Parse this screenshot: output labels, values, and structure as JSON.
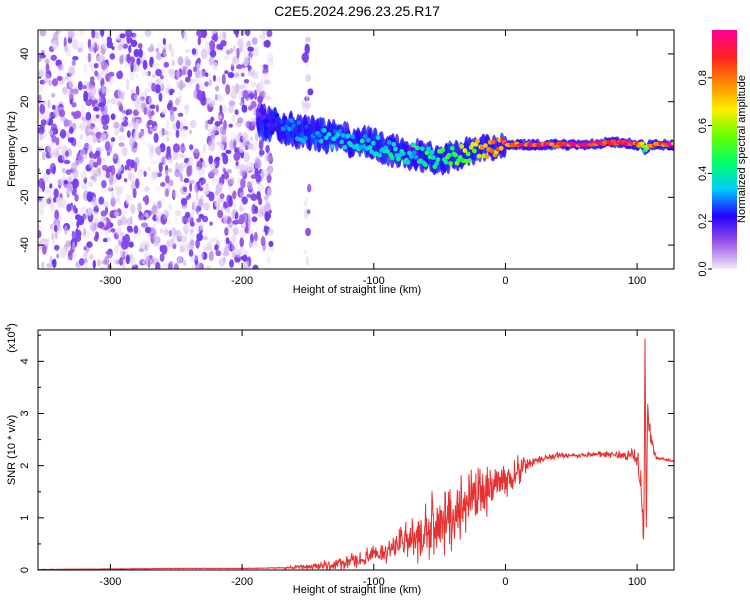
{
  "title": "C2E5.2024.296.23.25.R17",
  "chart_data": [
    {
      "type": "heatmap",
      "name": "spectrogram",
      "xlabel": "Height of straight line (km)",
      "ylabel": "Frequency (Hz)",
      "xlim": [
        -355,
        128
      ],
      "ylim": [
        -50,
        50
      ],
      "xticks": [
        -300,
        -200,
        -100,
        0,
        100
      ],
      "yticks": [
        -40,
        -20,
        0,
        20,
        40
      ],
      "colorbar": {
        "label": "Normalized spectral amplitude",
        "range": [
          0,
          1
        ],
        "ticks": [
          0.0,
          0.2,
          0.4,
          0.6,
          0.8
        ],
        "tick_labels": [
          "0.0",
          "0.2",
          "0.4",
          "0.6",
          "0.8"
        ],
        "colors": [
          "#f0eaf6",
          "#9a55e8",
          "#2200ff",
          "#00ccff",
          "#00ff66",
          "#66ff00",
          "#ffee00",
          "#ff8800",
          "#ff2020",
          "#ff0099"
        ]
      },
      "regions": [
        {
          "description": "broadband noise",
          "x_range": [
            -355,
            -178
          ],
          "y_range": [
            -50,
            50
          ],
          "amplitude_range": [
            0.0,
            0.15
          ]
        },
        {
          "description": "faint vertical streak",
          "x_range": [
            -153,
            -148
          ],
          "y_range": [
            -50,
            50
          ],
          "amplitude_range": [
            0.0,
            0.1
          ]
        }
      ],
      "ridge": {
        "x": [
          -188,
          -180,
          -170,
          -160,
          -150,
          -140,
          -130,
          -120,
          -110,
          -100,
          -90,
          -80,
          -70,
          -60,
          -50,
          -40,
          -30,
          -20,
          -10,
          0,
          10,
          20,
          40,
          60,
          80,
          90,
          100,
          104,
          106,
          110,
          120,
          128
        ],
        "freq": [
          12,
          11,
          10,
          8,
          7,
          6,
          5,
          4,
          3,
          2,
          0,
          -1,
          -2,
          -3,
          -4,
          -3,
          -1,
          0,
          1,
          2,
          2,
          2,
          2,
          2,
          3,
          3,
          2,
          2,
          0,
          2,
          2,
          2
        ],
        "amplitude": [
          0.18,
          0.22,
          0.28,
          0.3,
          0.3,
          0.32,
          0.35,
          0.35,
          0.38,
          0.38,
          0.4,
          0.42,
          0.4,
          0.45,
          0.5,
          0.55,
          0.6,
          0.7,
          0.8,
          0.9,
          0.95,
          0.97,
          0.97,
          0.97,
          0.95,
          0.95,
          0.9,
          0.6,
          0.5,
          0.8,
          0.9,
          0.9
        ]
      }
    },
    {
      "type": "line",
      "name": "snr",
      "xlabel": "Height of straight line (km)",
      "ylabel": "SNR (10 * v/v)",
      "y_multiplier_label": "(x10",
      "y_multiplier_exp": "4",
      "y_multiplier_close": ")",
      "xlim": [
        -355,
        128
      ],
      "ylim": [
        0,
        4.6
      ],
      "xticks": [
        -300,
        -200,
        -100,
        0,
        100
      ],
      "yticks": [
        0,
        1,
        2,
        3,
        4
      ],
      "line_color": "#e83030",
      "x": [
        -355,
        -300,
        -250,
        -200,
        -170,
        -160,
        -150,
        -140,
        -130,
        -120,
        -110,
        -100,
        -95,
        -90,
        -85,
        -80,
        -75,
        -70,
        -65,
        -60,
        -55,
        -50,
        -45,
        -40,
        -35,
        -30,
        -25,
        -20,
        -15,
        -10,
        -5,
        0,
        5,
        10,
        15,
        20,
        25,
        30,
        35,
        40,
        50,
        60,
        70,
        80,
        90,
        95,
        100,
        103,
        105,
        106,
        107,
        108,
        110,
        113,
        116,
        120,
        128
      ],
      "y": [
        0.01,
        0.02,
        0.03,
        0.03,
        0.04,
        0.05,
        0.06,
        0.08,
        0.1,
        0.14,
        0.2,
        0.28,
        0.32,
        0.38,
        0.44,
        0.5,
        0.55,
        0.58,
        0.62,
        0.7,
        0.78,
        0.9,
        0.98,
        1.02,
        1.18,
        1.35,
        1.4,
        1.5,
        1.55,
        1.58,
        1.65,
        1.72,
        1.8,
        1.92,
        2.0,
        2.05,
        2.1,
        2.15,
        2.16,
        2.2,
        2.2,
        2.2,
        2.22,
        2.22,
        2.2,
        2.2,
        2.15,
        1.6,
        0.6,
        4.1,
        1.1,
        3.0,
        2.6,
        2.2,
        2.15,
        2.12,
        2.1
      ],
      "noise_amplitude": [
        0.005,
        0.005,
        0.005,
        0.005,
        0.01,
        0.03,
        0.05,
        0.08,
        0.1,
        0.12,
        0.14,
        0.16,
        0.18,
        0.2,
        0.25,
        0.3,
        0.35,
        0.4,
        0.45,
        0.5,
        0.55,
        0.6,
        0.6,
        0.6,
        0.55,
        0.5,
        0.45,
        0.42,
        0.4,
        0.38,
        0.35,
        0.3,
        0.28,
        0.25,
        0.2,
        0.12,
        0.08,
        0.06,
        0.05,
        0.04,
        0.04,
        0.04,
        0.05,
        0.06,
        0.08,
        0.1,
        0.15,
        0.3,
        0.3,
        0.4,
        0.4,
        0.3,
        0.2,
        0.08,
        0.03,
        0.02,
        0.02
      ]
    }
  ]
}
